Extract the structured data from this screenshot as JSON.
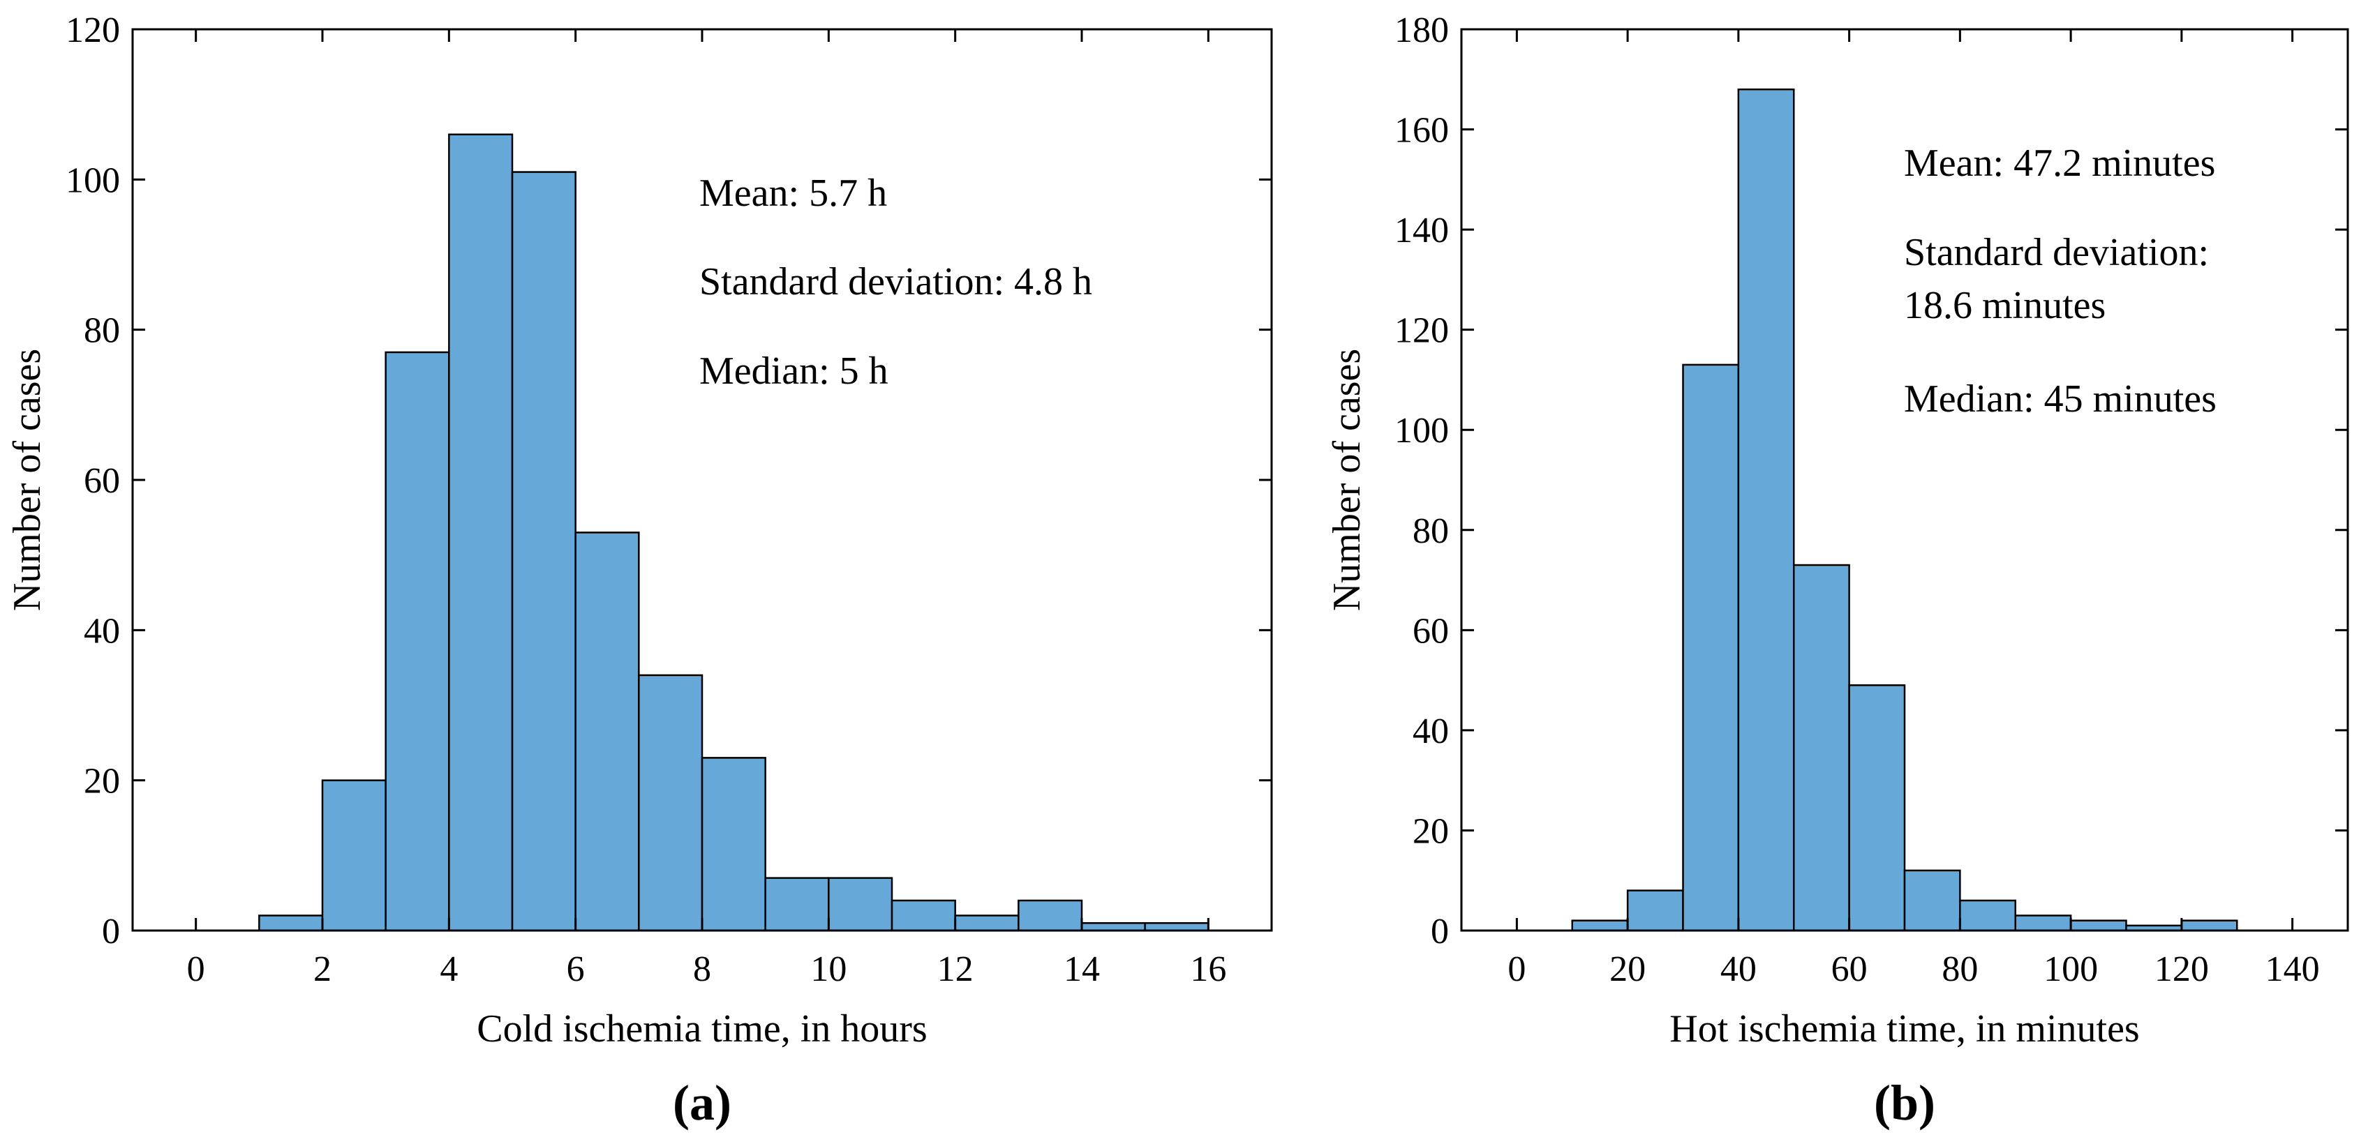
{
  "chart_data": [
    {
      "type": "bar",
      "panel_label": "(a)",
      "xlabel": "Cold ischemia time, in hours",
      "ylabel": "Number of cases",
      "xlim": [
        -1,
        17
      ],
      "ylim": [
        0,
        120
      ],
      "xticks": [
        0,
        2,
        4,
        6,
        8,
        10,
        12,
        14,
        16
      ],
      "yticks": [
        0,
        20,
        40,
        60,
        80,
        100,
        120
      ],
      "bin_edges": [
        1,
        2,
        3,
        4,
        5,
        6,
        7,
        8,
        9,
        10,
        11,
        12,
        13,
        14,
        15,
        16
      ],
      "values": [
        2,
        20,
        77,
        106,
        101,
        53,
        34,
        23,
        7,
        7,
        4,
        2,
        4,
        1,
        1
      ],
      "bar_color": "#66a9d8",
      "annotations": [
        "Mean: 5.7 h",
        "Standard deviation: 4.8 h",
        "Median: 5 h"
      ]
    },
    {
      "type": "bar",
      "panel_label": "(b)",
      "xlabel": "Hot ischemia time, in minutes",
      "ylabel": "Number of cases",
      "xlim": [
        -10,
        150
      ],
      "ylim": [
        0,
        180
      ],
      "xticks": [
        0,
        20,
        40,
        60,
        80,
        100,
        120,
        140
      ],
      "yticks": [
        0,
        20,
        40,
        60,
        80,
        100,
        120,
        140,
        160,
        180
      ],
      "bin_edges": [
        10,
        20,
        30,
        40,
        50,
        60,
        70,
        80,
        90,
        100,
        110,
        120,
        130
      ],
      "values": [
        2,
        8,
        113,
        168,
        73,
        49,
        12,
        6,
        3,
        2,
        1,
        2
      ],
      "bar_color": "#66a9d8",
      "annotations": [
        "Mean: 47.2 minutes",
        "Standard deviation:",
        "18.6 minutes",
        "Median: 45 minutes"
      ]
    }
  ]
}
